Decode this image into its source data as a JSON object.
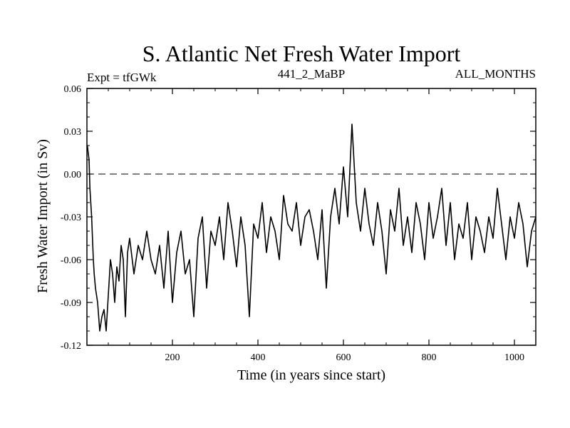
{
  "chart_data": {
    "type": "line",
    "title": "S. Atlantic Net Fresh Water Import",
    "subtitle_left": "Expt = tfGWk",
    "subtitle_center": "441_2_MaBP",
    "subtitle_right": "ALL_MONTHS",
    "xlabel": "Time (in years since start)",
    "ylabel": "Fresh Water Import (in Sv)",
    "xlim": [
      0,
      1050
    ],
    "ylim": [
      -0.12,
      0.06
    ],
    "x_ticks": [
      200,
      400,
      600,
      800,
      1000
    ],
    "x_tick_labels": [
      "200",
      "400",
      "600",
      "800",
      "1000"
    ],
    "y_ticks": [
      0.06,
      0.03,
      0.0,
      -0.03,
      -0.06,
      -0.09,
      -0.12
    ],
    "y_tick_labels": [
      "0.06",
      "0.03",
      "0.00",
      "-0.03",
      "-0.06",
      "-0.09",
      "-0.12"
    ],
    "reference_line": {
      "y": 0.0,
      "style": "dashed"
    },
    "series": [
      {
        "name": "Net fresh water import",
        "x": [
          1,
          3,
          5,
          7,
          9,
          11,
          13,
          15,
          17,
          20,
          25,
          30,
          35,
          40,
          45,
          50,
          55,
          60,
          65,
          70,
          75,
          80,
          85,
          90,
          95,
          100,
          110,
          120,
          130,
          140,
          150,
          160,
          170,
          180,
          190,
          200,
          210,
          220,
          230,
          240,
          250,
          260,
          270,
          280,
          290,
          300,
          310,
          320,
          330,
          340,
          350,
          360,
          370,
          380,
          390,
          400,
          410,
          420,
          430,
          440,
          450,
          460,
          470,
          480,
          490,
          500,
          510,
          520,
          530,
          540,
          550,
          560,
          570,
          580,
          590,
          600,
          610,
          620,
          630,
          640,
          650,
          660,
          670,
          680,
          690,
          700,
          710,
          720,
          730,
          740,
          750,
          760,
          770,
          780,
          790,
          800,
          810,
          820,
          830,
          840,
          850,
          860,
          870,
          880,
          890,
          900,
          910,
          920,
          930,
          940,
          950,
          960,
          970,
          980,
          990,
          1000,
          1010,
          1020,
          1030,
          1040,
          1050
        ],
        "y": [
          0.02,
          0.015,
          0.01,
          -0.01,
          -0.02,
          -0.03,
          -0.045,
          -0.06,
          -0.07,
          -0.08,
          -0.09,
          -0.11,
          -0.1,
          -0.095,
          -0.11,
          -0.085,
          -0.06,
          -0.07,
          -0.09,
          -0.065,
          -0.075,
          -0.05,
          -0.06,
          -0.1,
          -0.055,
          -0.045,
          -0.07,
          -0.05,
          -0.06,
          -0.04,
          -0.06,
          -0.07,
          -0.05,
          -0.08,
          -0.04,
          -0.09,
          -0.055,
          -0.04,
          -0.07,
          -0.06,
          -0.1,
          -0.045,
          -0.03,
          -0.08,
          -0.04,
          -0.05,
          -0.03,
          -0.06,
          -0.02,
          -0.04,
          -0.065,
          -0.03,
          -0.05,
          -0.1,
          -0.035,
          -0.045,
          -0.02,
          -0.055,
          -0.03,
          -0.04,
          -0.06,
          -0.015,
          -0.035,
          -0.04,
          -0.02,
          -0.05,
          -0.03,
          -0.025,
          -0.04,
          -0.06,
          -0.025,
          -0.08,
          -0.03,
          -0.01,
          -0.035,
          0.005,
          -0.03,
          0.035,
          -0.02,
          -0.04,
          -0.01,
          -0.035,
          -0.05,
          -0.02,
          -0.04,
          -0.07,
          -0.025,
          -0.04,
          -0.01,
          -0.05,
          -0.03,
          -0.055,
          -0.02,
          -0.035,
          -0.06,
          -0.02,
          -0.045,
          -0.03,
          -0.01,
          -0.05,
          -0.02,
          -0.06,
          -0.035,
          -0.045,
          -0.02,
          -0.06,
          -0.03,
          -0.04,
          -0.055,
          -0.03,
          -0.045,
          -0.01,
          -0.035,
          -0.06,
          -0.03,
          -0.045,
          -0.02,
          -0.035,
          -0.065,
          -0.04,
          -0.03
        ]
      }
    ]
  }
}
